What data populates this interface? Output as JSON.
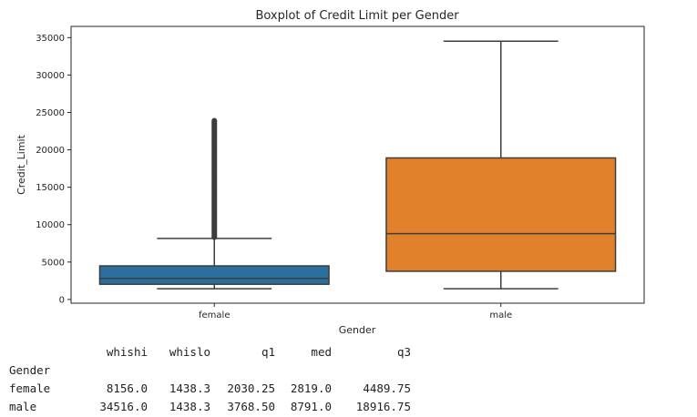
{
  "chart_data": {
    "type": "box",
    "title": "Boxplot of Credit Limit per Gender",
    "xlabel": "Gender",
    "ylabel": "Credit_Limit",
    "categories": [
      "female",
      "male"
    ],
    "colors": [
      "#2a6f9e",
      "#e1812c"
    ],
    "ylim": [
      -500,
      36500
    ],
    "yticks": [
      0,
      5000,
      10000,
      15000,
      20000,
      25000,
      30000,
      35000
    ],
    "boxes": [
      {
        "name": "female",
        "whislo": 1438.3,
        "q1": 2030.25,
        "med": 2819.0,
        "q3": 4489.75,
        "whishi": 8156.0,
        "fliers_range": [
          8156.0,
          24000
        ]
      },
      {
        "name": "male",
        "whislo": 1438.3,
        "q1": 3768.5,
        "med": 8791.0,
        "q3": 18916.75,
        "whishi": 34516.0,
        "fliers_range": null
      }
    ],
    "grid": false
  },
  "table": {
    "columns": [
      "whishi",
      "whislo",
      "q1",
      "med",
      "q3"
    ],
    "index_name": "Gender",
    "rows": [
      {
        "label": "female",
        "values": [
          "8156.0",
          "1438.3",
          "2030.25",
          "2819.0",
          "4489.75"
        ]
      },
      {
        "label": "male",
        "values": [
          "34516.0",
          "1438.3",
          "3768.50",
          "8791.0",
          "18916.75"
        ]
      }
    ]
  }
}
